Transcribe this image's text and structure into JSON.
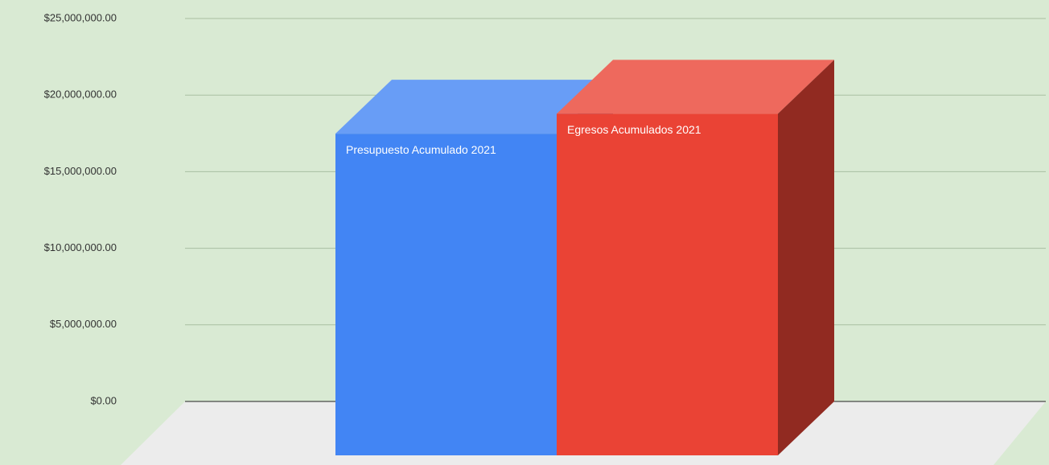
{
  "chart_data": {
    "type": "bar",
    "series": [
      {
        "name": "Presupuesto Acumulado 2021",
        "color": "#4285f4",
        "values": [
          21000000
        ]
      },
      {
        "name": "Egresos Acumulados 2021",
        "color": "#ea4335",
        "values": [
          22300000
        ]
      }
    ],
    "ylim": [
      0,
      25000000
    ],
    "yticks": [
      {
        "value": 0,
        "label": "$0.00"
      },
      {
        "value": 5000000,
        "label": "$5,000,000.00"
      },
      {
        "value": 10000000,
        "label": "$10,000,000.00"
      },
      {
        "value": 15000000,
        "label": "$15,000,000.00"
      },
      {
        "value": 20000000,
        "label": "$20,000,000.00"
      },
      {
        "value": 25000000,
        "label": "$25,000,000.00"
      }
    ],
    "grid": true
  }
}
